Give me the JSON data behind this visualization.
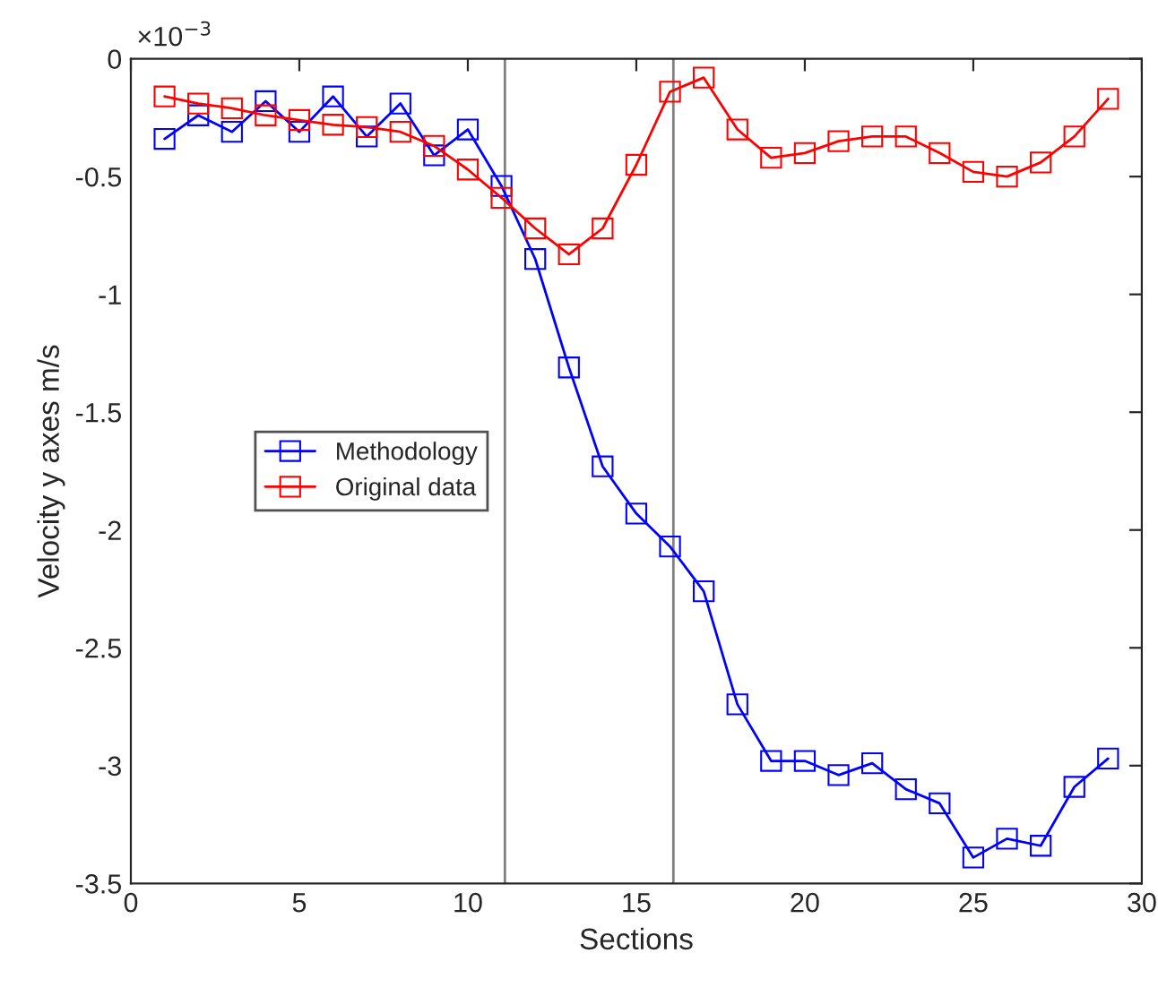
{
  "chart_data": {
    "type": "line",
    "xlabel": "Sections",
    "ylabel": "Velocity y axes m/s",
    "annotations": [
      "×10$^{−3}$"
    ],
    "x": [
      1,
      2,
      3,
      4,
      5,
      6,
      7,
      8,
      9,
      10,
      11,
      12,
      13,
      14,
      15,
      16,
      17,
      18,
      19,
      20,
      21,
      22,
      23,
      24,
      25,
      26,
      27,
      28,
      29
    ],
    "series": [
      {
        "name": "Methodology",
        "color": "#0000ff",
        "values": [
          -0.34,
          -0.24,
          -0.31,
          -0.18,
          -0.31,
          -0.16,
          -0.33,
          -0.19,
          -0.41,
          -0.3,
          -0.54,
          -0.85,
          -1.31,
          -1.73,
          -1.93,
          -2.07,
          -2.26,
          -2.74,
          -2.98,
          -2.98,
          -3.04,
          -2.99,
          -3.1,
          -3.16,
          -3.39,
          -3.31,
          -3.34,
          -3.09,
          -2.97
        ]
      },
      {
        "name": "Original data",
        "color": "#ff0000",
        "values": [
          -0.16,
          -0.19,
          -0.21,
          -0.24,
          -0.26,
          -0.28,
          -0.29,
          -0.31,
          -0.37,
          -0.47,
          -0.59,
          -0.72,
          -0.83,
          -0.72,
          -0.45,
          -0.14,
          -0.08,
          -0.3,
          -0.42,
          -0.4,
          -0.35,
          -0.33,
          -0.33,
          -0.4,
          -0.48,
          -0.5,
          -0.44,
          -0.33,
          -0.17
        ]
      }
    ],
    "xlim": [
      0,
      30
    ],
    "xticks": [
      0,
      5,
      10,
      15,
      20,
      25,
      30
    ],
    "ylim": [
      -3.5,
      0
    ],
    "yticks": [
      -3.5,
      -3,
      -2.5,
      -2,
      -1.5,
      -1,
      -0.5,
      0
    ],
    "ref_lines": [
      {
        "axis": "x",
        "value": 11.1,
        "color": "#808080"
      },
      {
        "axis": "x",
        "value": 16.1,
        "color": "#808080"
      }
    ],
    "marker": "square",
    "line_style": "solid",
    "grid": false,
    "legend": "center left"
  }
}
